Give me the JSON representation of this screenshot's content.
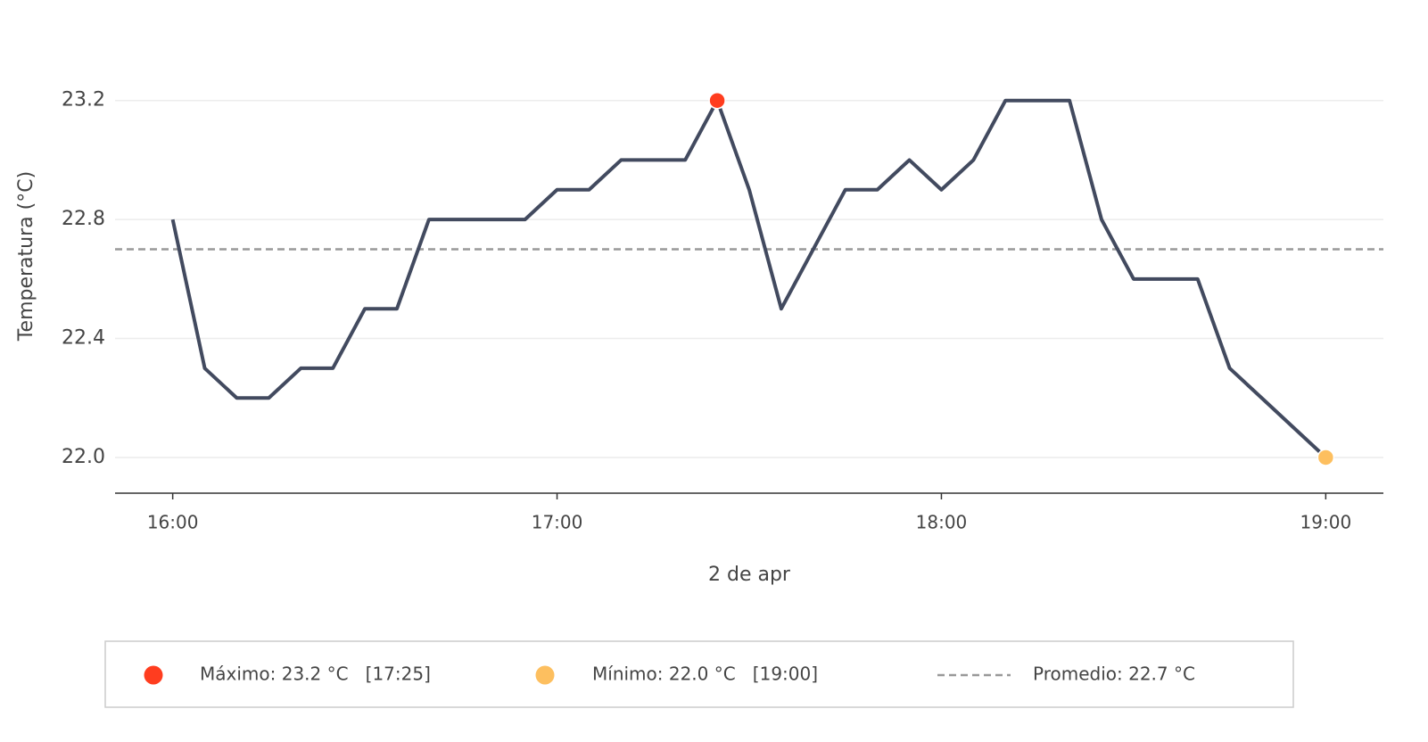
{
  "chart_data": {
    "type": "line",
    "x_label": "2 de apr",
    "y_label": "Temperatura (°C)",
    "x": [
      "16:00",
      "16:05",
      "16:10",
      "16:15",
      "16:20",
      "16:25",
      "16:30",
      "16:35",
      "16:40",
      "16:45",
      "16:50",
      "16:55",
      "17:00",
      "17:05",
      "17:10",
      "17:15",
      "17:20",
      "17:25",
      "17:30",
      "17:35",
      "17:40",
      "17:45",
      "17:50",
      "17:55",
      "18:00",
      "18:05",
      "18:10",
      "18:15",
      "18:20",
      "18:25",
      "18:30",
      "18:35",
      "18:40",
      "18:45",
      "18:50",
      "18:55",
      "19:00"
    ],
    "series": [
      {
        "color": "#424a5f",
        "values": [
          22.8,
          22.3,
          22.2,
          22.2,
          22.3,
          22.3,
          22.5,
          22.5,
          22.8,
          22.8,
          22.8,
          22.8,
          22.9,
          22.9,
          23.0,
          23.0,
          23.0,
          23.2,
          22.9,
          22.5,
          22.7,
          22.9,
          22.9,
          23.0,
          22.9,
          23.0,
          23.2,
          23.2,
          23.2,
          22.8,
          22.6,
          22.6,
          22.6,
          22.3,
          22.2,
          22.1,
          22.0
        ]
      }
    ],
    "xlim": [
      "15:51",
      "19:09"
    ],
    "xticks": [
      "16:00",
      "17:00",
      "18:00",
      "19:00"
    ],
    "ylim": [
      21.88,
      23.4
    ],
    "yticks": [
      {
        "value": 22.0,
        "label": "22.0"
      },
      {
        "value": 22.4,
        "label": "22.4"
      },
      {
        "value": 22.8,
        "label": "22.8"
      },
      {
        "value": 23.2,
        "label": "23.2"
      }
    ],
    "grid": true,
    "max": {
      "x": "17:25",
      "value": 23.2,
      "color": "#ff3d1f",
      "label": "Máximo: 23.2 °C   [17:25]"
    },
    "min": {
      "x": "19:00",
      "value": 22.0,
      "color": "#fdbf5f",
      "label": "Mínimo: 22.0 °C   [19:00]"
    },
    "average": {
      "value": 22.7,
      "color": "#999999",
      "label": "Promedio: 22.7 °C"
    }
  }
}
